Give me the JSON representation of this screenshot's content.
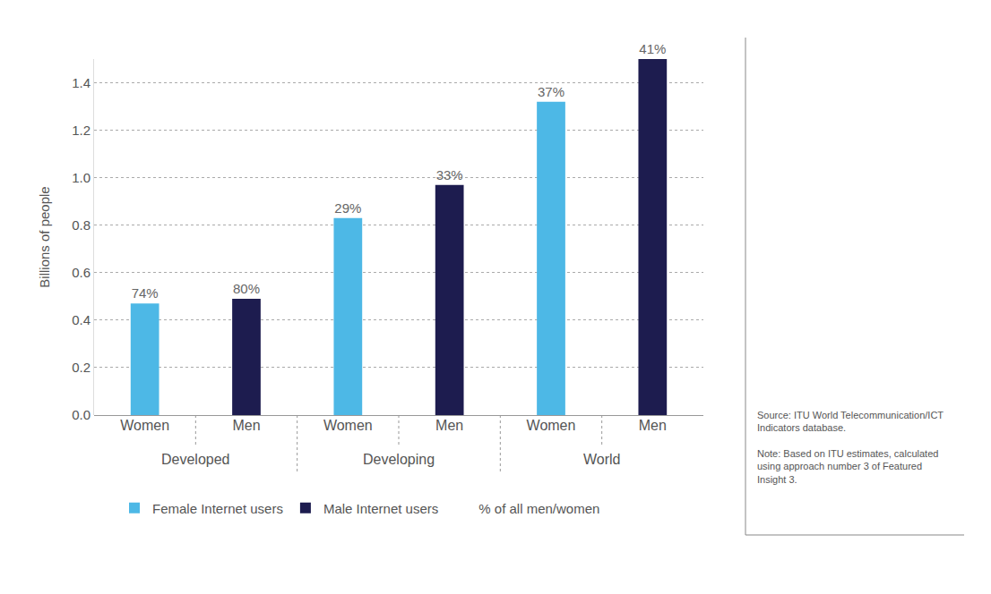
{
  "chart_data": {
    "type": "bar",
    "categories": [
      "Developed",
      "Developing",
      "World"
    ],
    "y_label": "Billions of people",
    "ylim": [
      0,
      1.5
    ],
    "yticks": [
      {
        "value": 0,
        "label": "0.0"
      },
      {
        "value": 0.2,
        "label": "0.2"
      },
      {
        "value": 0.4,
        "label": "0.4"
      },
      {
        "value": 0.6,
        "label": "0.6"
      },
      {
        "value": 0.8,
        "label": "0.8"
      },
      {
        "value": 1.0,
        "label": "1.0"
      },
      {
        "value": 1.2,
        "label": "1.2"
      },
      {
        "value": 1.4,
        "label": "1.4"
      }
    ],
    "grid": true,
    "series": [
      {
        "name": "Female Internet users",
        "sublabel": "Women",
        "color": "#4db8e6",
        "values": [
          0.47,
          0.83,
          1.32
        ],
        "share_labels": [
          "74%",
          "29%",
          "37%"
        ]
      },
      {
        "name": "Male Internet users",
        "sublabel": "Men",
        "color": "#1d1c4f",
        "values": [
          0.49,
          0.97,
          1.5
        ],
        "share_labels": [
          "80%",
          "33%",
          "41%"
        ]
      }
    ],
    "share_legend": "% of all men/women",
    "source": "Source: ITU World Telecommunication/ICT Indicators database.",
    "note": "Note: Based on ITU estimates, calculated using approach number 3 of Featured Insight 3."
  }
}
